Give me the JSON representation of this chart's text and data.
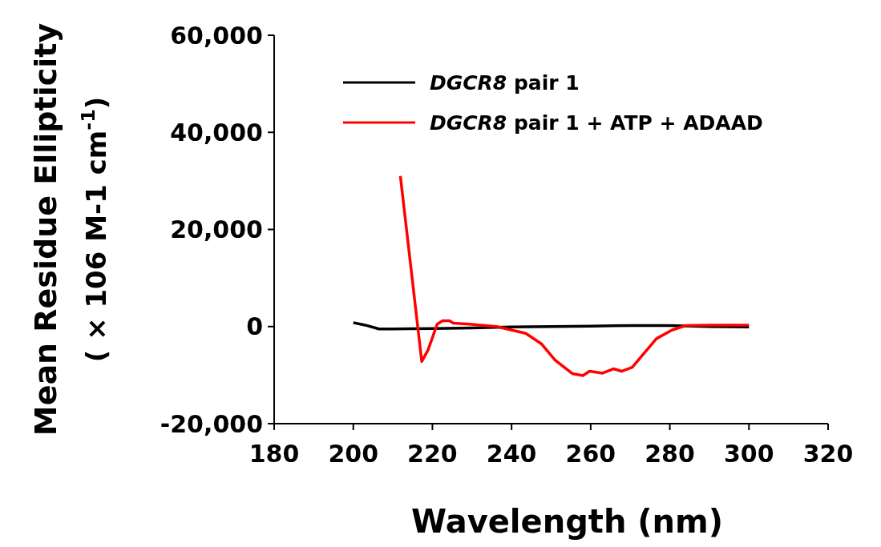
{
  "chart_data": {
    "type": "line",
    "xlabel": "Wavelength (nm)",
    "ylabel": "Mean Residue Ellipticity\n( × 106  M-1 cm$^{-1}$)",
    "xlim": [
      180,
      320
    ],
    "xticks": [
      180,
      200,
      220,
      240,
      260,
      280,
      300,
      320
    ],
    "ylim": [
      -20000,
      60000
    ],
    "yticks": [
      {
        "value": -20000,
        "label": "-20,000"
      },
      0,
      {
        "value": 20000,
        "label": "20,000"
      },
      {
        "value": 40000,
        "label": "40,000"
      },
      {
        "value": 60000,
        "label": "60,000"
      }
    ],
    "legend": "top left",
    "grid": false,
    "series": [
      {
        "name": "*DGCR8* pair 1",
        "color": "#000000",
        "x": [
          200,
          203,
          206.5,
          210,
          220,
          230,
          240,
          250,
          260,
          270,
          280,
          290,
          300
        ],
        "values": [
          800,
          300,
          -500,
          -500,
          -400,
          -300,
          -100,
          0,
          100,
          200,
          200,
          0,
          -100
        ]
      },
      {
        "name": "*DGCR8* pair 1 + ATP + ADAAD",
        "color": "#ff0000",
        "x": [
          211.9,
          217.3,
          218.9,
          221.2,
          222.6,
          224.3,
          225.3,
          229.3,
          236.2,
          243.6,
          247.6,
          251,
          255.4,
          258,
          259.7,
          263,
          265.8,
          267.8,
          270.5,
          276.6,
          280.6,
          284,
          290,
          300
        ],
        "values": [
          31000,
          -7200,
          -4800,
          500,
          1200,
          1200,
          700,
          500,
          0,
          -1400,
          -3600,
          -6900,
          -9700,
          -10100,
          -9200,
          -9600,
          -8700,
          -9200,
          -8400,
          -2500,
          -700,
          200,
          300,
          300
        ]
      }
    ]
  }
}
